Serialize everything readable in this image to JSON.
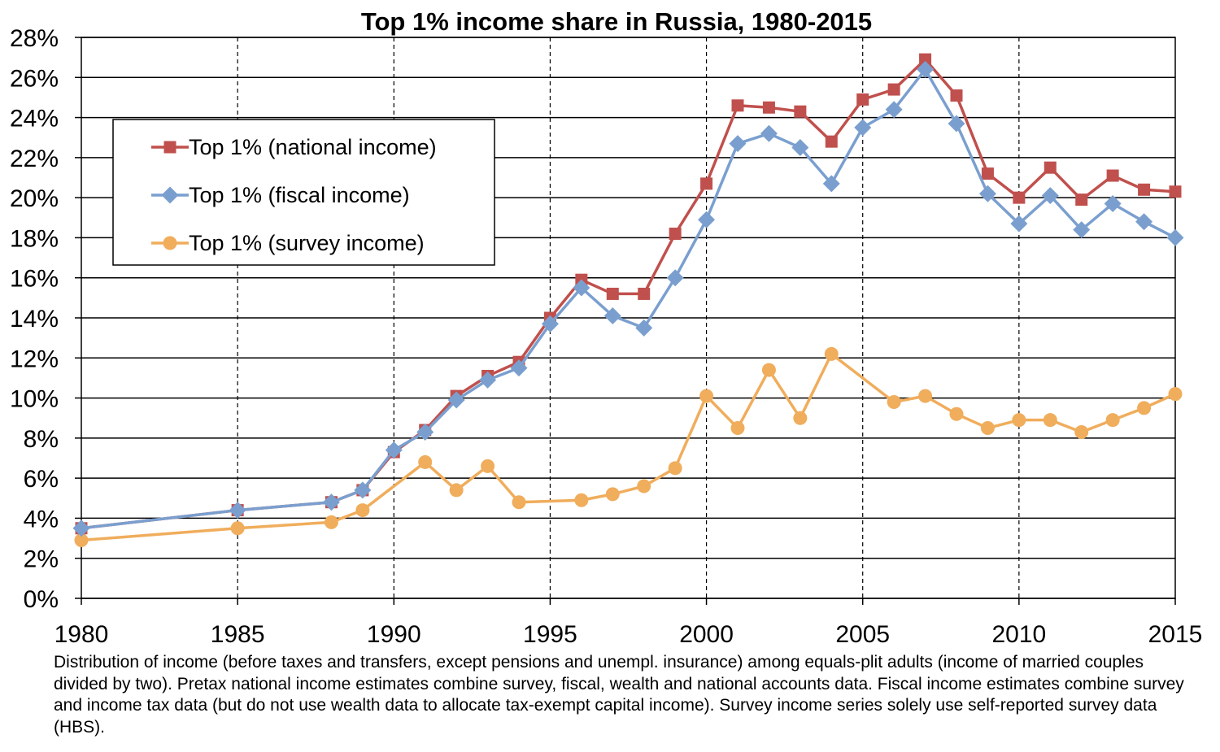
{
  "chart_data": {
    "type": "line",
    "title": "Top 1% income share in Russia, 1980-2015",
    "xlabel": "",
    "ylabel": "",
    "xlim": [
      1980,
      2015
    ],
    "ylim": [
      0,
      28
    ],
    "x_ticks": [
      "1980",
      "1985",
      "1990",
      "1995",
      "2000",
      "2005",
      "2010",
      "2015"
    ],
    "y_ticks": [
      "0%",
      "2%",
      "4%",
      "6%",
      "8%",
      "10%",
      "12%",
      "14%",
      "16%",
      "18%",
      "20%",
      "22%",
      "24%",
      "26%",
      "28%"
    ],
    "grid": "horizontal solid, vertical dashed every 5 years",
    "legend_position": "upper-left",
    "series": [
      {
        "name": "Top 1% (national income)",
        "color": "#c0504d",
        "marker": "square",
        "x": [
          1980,
          1985,
          1988,
          1989,
          1990,
          1991,
          1992,
          1993,
          1994,
          1995,
          1996,
          1997,
          1998,
          1999,
          2000,
          2001,
          2002,
          2003,
          2004,
          2005,
          2006,
          2007,
          2008,
          2009,
          2010,
          2011,
          2012,
          2013,
          2014,
          2015
        ],
        "values": [
          3.5,
          4.4,
          4.8,
          5.4,
          7.3,
          8.4,
          10.1,
          11.1,
          11.8,
          14.0,
          15.9,
          15.2,
          15.2,
          18.2,
          20.7,
          24.6,
          24.5,
          24.3,
          22.8,
          24.9,
          25.4,
          26.9,
          25.1,
          21.2,
          20.0,
          21.5,
          19.9,
          21.1,
          20.4,
          20.3
        ]
      },
      {
        "name": "Top 1% (fiscal income)",
        "color": "#7a9fcf",
        "marker": "diamond",
        "x": [
          1980,
          1985,
          1988,
          1989,
          1990,
          1991,
          1992,
          1993,
          1994,
          1995,
          1996,
          1997,
          1998,
          1999,
          2000,
          2001,
          2002,
          2003,
          2004,
          2005,
          2006,
          2007,
          2008,
          2009,
          2010,
          2011,
          2012,
          2013,
          2014,
          2015
        ],
        "values": [
          3.5,
          4.4,
          4.8,
          5.4,
          7.4,
          8.3,
          9.9,
          10.9,
          11.5,
          13.7,
          15.5,
          14.1,
          13.5,
          16.0,
          18.9,
          22.7,
          23.2,
          22.5,
          20.7,
          23.5,
          24.4,
          26.4,
          23.7,
          20.2,
          18.7,
          20.1,
          18.4,
          19.7,
          18.8,
          18.0
        ]
      },
      {
        "name": "Top 1% (survey income)",
        "color": "#f0ad5c",
        "marker": "circle",
        "x": [
          1980,
          1985,
          1988,
          1989,
          1991,
          1992,
          1993,
          1994,
          1996,
          1997,
          1998,
          1999,
          2000,
          2001,
          2002,
          2003,
          2004,
          2006,
          2007,
          2008,
          2009,
          2010,
          2011,
          2012,
          2013,
          2014,
          2015
        ],
        "values": [
          2.9,
          3.5,
          3.8,
          4.4,
          6.8,
          5.4,
          6.6,
          4.8,
          4.9,
          5.2,
          5.6,
          6.5,
          10.1,
          8.5,
          11.4,
          9.0,
          12.2,
          9.8,
          10.1,
          9.2,
          8.5,
          8.9,
          8.9,
          8.3,
          8.9,
          9.5,
          10.2
        ]
      }
    ]
  },
  "footnote": "Distribution of income (before taxes and transfers, except pensions and unempl. insurance) among equals-plit adults (income of married couples divided by two). Pretax national income estimates combine survey, fiscal, wealth and national accounts data. Fiscal income estimates combine survey and income tax data (but do not use wealth data to allocate tax-exempt capital income). Survey income series solely use self-reported survey data (HBS)."
}
